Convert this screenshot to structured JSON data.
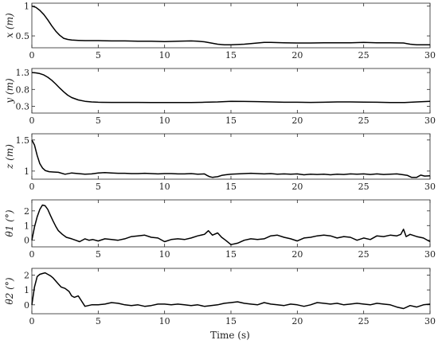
{
  "chart_data": [
    {
      "type": "line",
      "ylabel": "x (m)",
      "xlim": [
        0,
        30
      ],
      "ylim": [
        0.3,
        1.05
      ],
      "xticks": [
        0,
        5,
        10,
        15,
        20,
        25,
        30
      ],
      "yticks": [
        0.5,
        1
      ],
      "ytick_labels": [
        "0.5",
        "1"
      ],
      "series": [
        {
          "x": [
            0,
            0.3,
            0.6,
            0.9,
            1.2,
            1.5,
            1.8,
            2.1,
            2.4,
            2.7,
            3,
            3.5,
            4,
            5,
            6,
            7,
            8,
            9,
            10,
            11,
            12,
            12.5,
            13,
            13.5,
            14,
            14.5,
            15,
            15.5,
            16,
            16.5,
            17,
            17.5,
            18,
            19,
            20,
            21,
            22,
            23,
            24,
            25,
            26,
            27,
            28,
            28.5,
            29,
            30
          ],
          "y": [
            1.0,
            0.98,
            0.93,
            0.86,
            0.77,
            0.67,
            0.58,
            0.51,
            0.46,
            0.44,
            0.43,
            0.425,
            0.42,
            0.42,
            0.415,
            0.415,
            0.41,
            0.41,
            0.405,
            0.41,
            0.415,
            0.41,
            0.4,
            0.38,
            0.36,
            0.35,
            0.35,
            0.355,
            0.36,
            0.37,
            0.38,
            0.39,
            0.39,
            0.385,
            0.38,
            0.38,
            0.385,
            0.385,
            0.385,
            0.39,
            0.385,
            0.385,
            0.38,
            0.36,
            0.35,
            0.35
          ]
        }
      ]
    },
    {
      "type": "line",
      "ylabel": "y (m)",
      "xlim": [
        0,
        30
      ],
      "ylim": [
        0.1,
        1.42
      ],
      "xticks": [
        0,
        5,
        10,
        15,
        20,
        25,
        30
      ],
      "yticks": [
        0.3,
        0.8,
        1.3
      ],
      "ytick_labels": [
        "0.3",
        "0.8",
        "1.3"
      ],
      "series": [
        {
          "x": [
            0,
            0.3,
            0.6,
            0.9,
            1.2,
            1.5,
            1.8,
            2.1,
            2.4,
            2.7,
            3,
            3.5,
            4,
            4.5,
            5,
            6,
            7,
            8,
            9,
            10,
            11,
            12,
            13,
            14,
            15,
            16,
            17,
            18,
            19,
            20,
            21,
            22,
            23,
            24,
            25,
            26,
            27,
            28,
            29,
            30
          ],
          "y": [
            1.3,
            1.29,
            1.27,
            1.23,
            1.16,
            1.07,
            0.96,
            0.84,
            0.73,
            0.63,
            0.56,
            0.49,
            0.45,
            0.43,
            0.42,
            0.415,
            0.415,
            0.415,
            0.41,
            0.41,
            0.41,
            0.41,
            0.42,
            0.43,
            0.45,
            0.445,
            0.44,
            0.43,
            0.42,
            0.42,
            0.415,
            0.42,
            0.43,
            0.43,
            0.425,
            0.42,
            0.41,
            0.41,
            0.43,
            0.45
          ]
        }
      ]
    },
    {
      "type": "line",
      "ylabel": "z (m)",
      "xlim": [
        0,
        30
      ],
      "ylim": [
        0.87,
        1.6
      ],
      "xticks": [
        0,
        5,
        10,
        15,
        20,
        25,
        30
      ],
      "yticks": [
        1,
        1.5
      ],
      "ytick_labels": [
        "1",
        "1.5"
      ],
      "series": [
        {
          "x": [
            0,
            0.2,
            0.4,
            0.6,
            0.8,
            1,
            1.3,
            1.6,
            2,
            2.5,
            3,
            3.5,
            4,
            4.5,
            5,
            5.5,
            6,
            6.5,
            7,
            7.5,
            8,
            8.5,
            9,
            9.5,
            10,
            10.5,
            11,
            11.5,
            12,
            12.5,
            13,
            13.2,
            13.4,
            13.6,
            13.8,
            14,
            14.3,
            14.6,
            15,
            15.5,
            16,
            16.5,
            17,
            17.5,
            18,
            18.5,
            19,
            19.5,
            20,
            20.5,
            21,
            21.5,
            22,
            22.5,
            23,
            23.5,
            24,
            24.5,
            25,
            25.5,
            26,
            26.5,
            27,
            27.5,
            28,
            28.3,
            28.6,
            29,
            29.3,
            29.6,
            30
          ],
          "y": [
            1.5,
            1.42,
            1.25,
            1.12,
            1.05,
            1.01,
            0.99,
            0.985,
            0.98,
            0.95,
            0.97,
            0.96,
            0.95,
            0.955,
            0.97,
            0.975,
            0.97,
            0.965,
            0.965,
            0.96,
            0.96,
            0.965,
            0.96,
            0.955,
            0.96,
            0.96,
            0.955,
            0.955,
            0.96,
            0.95,
            0.955,
            0.93,
            0.91,
            0.9,
            0.905,
            0.91,
            0.93,
            0.94,
            0.95,
            0.955,
            0.96,
            0.965,
            0.96,
            0.955,
            0.96,
            0.95,
            0.955,
            0.95,
            0.955,
            0.94,
            0.95,
            0.945,
            0.95,
            0.94,
            0.95,
            0.945,
            0.955,
            0.95,
            0.955,
            0.945,
            0.955,
            0.945,
            0.95,
            0.955,
            0.94,
            0.93,
            0.9,
            0.9,
            0.935,
            0.92,
            0.925
          ]
        }
      ]
    },
    {
      "type": "line",
      "ylabel": "θ1 (°)",
      "xlim": [
        0,
        30
      ],
      "ylim": [
        -0.45,
        2.75
      ],
      "xticks": [
        0,
        5,
        10,
        15,
        20,
        25,
        30
      ],
      "yticks": [
        0,
        1,
        2
      ],
      "ytick_labels": [
        "0",
        "1",
        "2"
      ],
      "series": [
        {
          "x": [
            0,
            0.2,
            0.4,
            0.6,
            0.8,
            1,
            1.2,
            1.4,
            1.6,
            1.8,
            2,
            2.3,
            2.6,
            3,
            3.3,
            3.6,
            4,
            4.3,
            4.6,
            5,
            5.5,
            6,
            6.5,
            7,
            7.5,
            8,
            8.5,
            9,
            9.5,
            10,
            10.5,
            11,
            11.5,
            12,
            12.5,
            13,
            13.3,
            13.6,
            14,
            14.3,
            14.6,
            15,
            15.5,
            16,
            16.5,
            17,
            17.5,
            18,
            18.5,
            19,
            19.5,
            20,
            20.5,
            21,
            21.5,
            22,
            22.5,
            23,
            23.5,
            24,
            24.5,
            25,
            25.5,
            26,
            26.5,
            27,
            27.5,
            27.8,
            28,
            28.2,
            28.5,
            29,
            29.5,
            30
          ],
          "y": [
            0.0,
            0.9,
            1.6,
            2.1,
            2.4,
            2.35,
            2.1,
            1.7,
            1.3,
            0.95,
            0.65,
            0.4,
            0.2,
            0.1,
            0.0,
            -0.1,
            0.1,
            0.0,
            0.05,
            -0.05,
            0.1,
            0.05,
            0.0,
            0.1,
            0.25,
            0.3,
            0.35,
            0.2,
            0.15,
            -0.1,
            0.05,
            0.1,
            0.05,
            0.15,
            0.3,
            0.4,
            0.65,
            0.35,
            0.5,
            0.2,
            0.0,
            -0.3,
            -0.2,
            0.0,
            0.1,
            0.05,
            0.1,
            0.3,
            0.35,
            0.2,
            0.1,
            -0.05,
            0.15,
            0.2,
            0.3,
            0.35,
            0.3,
            0.15,
            0.25,
            0.2,
            0.0,
            0.15,
            0.05,
            0.3,
            0.25,
            0.35,
            0.3,
            0.4,
            0.75,
            0.25,
            0.4,
            0.25,
            0.15,
            -0.1
          ]
        }
      ]
    },
    {
      "type": "line",
      "ylabel": "θ2 (°)",
      "xlabel": "Time (s)",
      "xlim": [
        0,
        30
      ],
      "ylim": [
        -0.6,
        2.45
      ],
      "xticks": [
        0,
        5,
        10,
        15,
        20,
        25,
        30
      ],
      "yticks": [
        0,
        1,
        2
      ],
      "ytick_labels": [
        "0",
        "1",
        "2"
      ],
      "series": [
        {
          "x": [
            0,
            0.2,
            0.4,
            0.6,
            0.8,
            1,
            1.2,
            1.4,
            1.6,
            1.8,
            2,
            2.2,
            2.5,
            2.8,
            3,
            3.2,
            3.5,
            4,
            4.5,
            5,
            5.5,
            6,
            6.5,
            7,
            7.5,
            8,
            8.5,
            9,
            9.5,
            10,
            10.5,
            11,
            11.5,
            12,
            12.5,
            13,
            13.5,
            14,
            14.5,
            15,
            15.5,
            16,
            16.5,
            17,
            17.5,
            18,
            18.5,
            19,
            19.5,
            20,
            20.5,
            21,
            21.5,
            22,
            22.5,
            23,
            23.5,
            24,
            24.5,
            25,
            25.5,
            26,
            26.5,
            27,
            27.5,
            28,
            28.5,
            29,
            29.5,
            30
          ],
          "y": [
            0.0,
            1.2,
            1.9,
            2.05,
            2.1,
            2.15,
            2.05,
            1.95,
            1.8,
            1.6,
            1.4,
            1.2,
            1.1,
            0.9,
            0.6,
            0.5,
            0.6,
            -0.1,
            0.0,
            0.0,
            0.05,
            0.15,
            0.1,
            0.0,
            -0.05,
            0.0,
            -0.1,
            -0.05,
            0.05,
            0.05,
            0.0,
            0.05,
            0.0,
            -0.05,
            0.0,
            -0.1,
            -0.05,
            0.0,
            0.1,
            0.15,
            0.2,
            0.1,
            0.05,
            0.0,
            0.15,
            0.05,
            0.0,
            -0.05,
            0.05,
            0.0,
            -0.1,
            0.0,
            0.15,
            0.1,
            0.05,
            0.1,
            0.0,
            0.05,
            0.1,
            0.05,
            0.0,
            0.1,
            0.05,
            0.0,
            -0.15,
            -0.25,
            -0.05,
            -0.15,
            0.0,
            0.05
          ]
        }
      ]
    }
  ],
  "colors": {
    "line": "#000000",
    "axes": "#262626",
    "text": "#222222"
  }
}
